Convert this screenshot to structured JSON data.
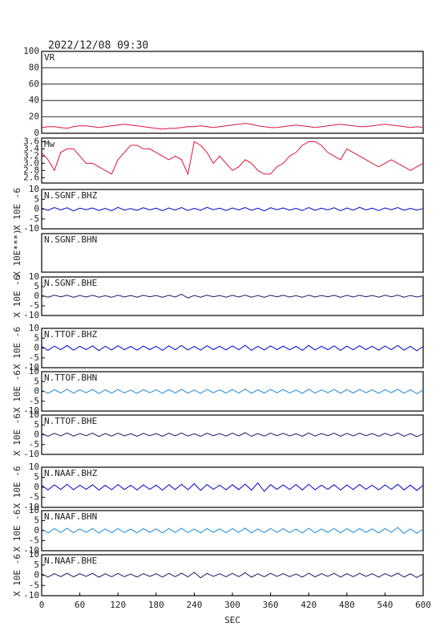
{
  "chart_data": {
    "type": "line",
    "title": "2022/12/08 09:30",
    "xlabel": "SEC",
    "xlim": [
      0,
      600
    ],
    "xticks": [
      0,
      60,
      120,
      180,
      240,
      300,
      360,
      420,
      480,
      540,
      600
    ],
    "x": [
      0,
      10,
      20,
      30,
      40,
      50,
      60,
      70,
      80,
      90,
      100,
      110,
      120,
      130,
      140,
      150,
      160,
      170,
      180,
      190,
      200,
      210,
      220,
      230,
      240,
      250,
      260,
      270,
      280,
      290,
      300,
      310,
      320,
      330,
      340,
      350,
      360,
      370,
      380,
      390,
      400,
      410,
      420,
      430,
      440,
      450,
      460,
      470,
      480,
      490,
      500,
      510,
      520,
      530,
      540,
      550,
      560,
      570,
      580,
      590,
      600
    ],
    "panels": [
      {
        "label": "VR",
        "ylim": [
          0,
          100
        ],
        "yticks": [
          0,
          20,
          40,
          60,
          80,
          100
        ],
        "grid": true,
        "color": "#dc143c",
        "values": [
          7,
          8,
          8,
          7,
          6,
          8,
          9,
          9,
          8,
          7,
          8,
          9,
          10,
          11,
          10,
          9,
          8,
          7,
          6,
          5,
          6,
          6,
          7,
          8,
          8,
          9,
          8,
          7,
          8,
          9,
          10,
          11,
          12,
          11,
          9,
          8,
          7,
          7,
          8,
          9,
          10,
          9,
          8,
          7,
          8,
          9,
          10,
          11,
          10,
          9,
          8,
          8,
          9,
          10,
          11,
          10,
          9,
          8,
          7,
          8,
          7
        ]
      },
      {
        "label": "Mw",
        "ylim": [
          2.45,
          3.7
        ],
        "yticks": [
          2.6,
          2.8,
          {
            "value": 3,
            "label": "3.0"
          },
          3.2,
          3.4,
          3.6
        ],
        "grid": false,
        "color": "#dc143c",
        "values": [
          3.3,
          3.1,
          2.8,
          3.3,
          3.4,
          3.4,
          3.2,
          3.0,
          3.0,
          2.9,
          2.8,
          2.7,
          3.1,
          3.3,
          3.5,
          3.5,
          3.4,
          3.4,
          3.3,
          3.2,
          3.1,
          3.2,
          3.1,
          2.7,
          3.6,
          3.5,
          3.3,
          3.0,
          3.2,
          3.0,
          2.8,
          2.9,
          3.1,
          3.0,
          2.8,
          2.7,
          2.7,
          2.9,
          3.0,
          3.2,
          3.3,
          3.5,
          3.6,
          3.6,
          3.5,
          3.3,
          3.2,
          3.1,
          3.4,
          3.3,
          3.2,
          3.1,
          3.0,
          2.9,
          3.0,
          3.1,
          3.0,
          2.9,
          2.8,
          2.9,
          3.0
        ]
      },
      {
        "label": "N.SGNF.BHZ",
        "ylabel": "X 10E -6",
        "ylim": [
          -10,
          10
        ],
        "yticks": [
          -10,
          -5,
          0,
          5,
          10
        ],
        "grid": false,
        "color": "#0000cd",
        "values": [
          0.5,
          -0.6,
          0.8,
          -0.4,
          0.7,
          -0.9,
          0.5,
          -0.3,
          0.6,
          -0.7,
          0.4,
          -0.8,
          0.9,
          -0.5,
          0.3,
          -0.6,
          0.7,
          -0.4,
          0.5,
          -0.8,
          0.6,
          -0.5,
          0.8,
          -0.7,
          0.4,
          -0.6,
          0.9,
          -0.3,
          0.5,
          -0.7,
          0.6,
          -0.4,
          0.8,
          -0.6,
          0.5,
          -0.9,
          0.7,
          -0.3,
          0.6,
          -0.5,
          0.4,
          -0.7,
          0.8,
          -0.6,
          0.5,
          -0.4,
          0.7,
          -0.8,
          0.6,
          -0.5,
          0.9,
          -0.4,
          0.5,
          -0.7,
          0.6,
          -0.3,
          0.8,
          -0.6,
          0.4,
          -0.5,
          0.3
        ]
      },
      {
        "label": "N.SGNF.BHN",
        "ylabel": "X 10E***)"
      },
      {
        "label": "N.SGNF.BHE",
        "ylabel": "X 10E -6",
        "ylim": [
          -10,
          10
        ],
        "yticks": [
          -10,
          -5,
          0,
          5,
          10
        ],
        "grid": false,
        "color": "#191970",
        "values": [
          0.4,
          -0.5,
          0.6,
          -0.3,
          0.5,
          -0.6,
          0.4,
          -0.4,
          0.5,
          -0.5,
          0.3,
          -0.6,
          0.6,
          -0.4,
          0.4,
          -0.5,
          0.5,
          -0.3,
          0.4,
          -0.6,
          0.5,
          -0.4,
          1.0,
          -0.9,
          0.4,
          -0.5,
          0.6,
          -0.3,
          0.4,
          -0.5,
          0.5,
          -0.4,
          0.6,
          -0.5,
          0.4,
          -0.6,
          0.5,
          -0.3,
          0.5,
          -0.4,
          0.3,
          -0.5,
          0.6,
          -0.4,
          0.4,
          -0.3,
          0.5,
          -0.6,
          0.5,
          -0.4,
          0.6,
          -0.3,
          0.4,
          -0.5,
          0.5,
          -0.3,
          0.6,
          -0.5,
          0.4,
          -0.4,
          0.3
        ]
      },
      {
        "label": "N.TTOF.BHZ",
        "ylabel": "X 10E -6",
        "ylim": [
          -10,
          10
        ],
        "yticks": [
          -10,
          -5,
          0,
          5,
          10
        ],
        "grid": false,
        "color": "#0000cd",
        "values": [
          0.8,
          -1.2,
          1.0,
          -0.9,
          1.3,
          -1.1,
          0.9,
          -0.8,
          1.1,
          -1.3,
          0.9,
          -1.0,
          1.2,
          -0.9,
          0.8,
          -1.1,
          1.0,
          -0.8,
          0.9,
          -1.2,
          1.1,
          -0.9,
          1.3,
          -1.0,
          0.8,
          -1.1,
          1.2,
          -0.8,
          0.9,
          -1.0,
          1.1,
          -0.9,
          1.4,
          -1.2,
          0.9,
          -1.0,
          1.1,
          -0.8,
          1.0,
          -0.9,
          0.8,
          -1.2,
          1.3,
          -1.0,
          0.9,
          -0.8,
          1.1,
          -1.2,
          1.0,
          -0.9,
          1.2,
          -0.8,
          0.9,
          -1.1,
          1.0,
          -0.8,
          1.3,
          -1.1,
          0.9,
          -1.4,
          0.8
        ]
      },
      {
        "label": "N.TTOF.BHN",
        "ylabel": "X 10E -6",
        "ylim": [
          -10,
          10
        ],
        "yticks": [
          -10,
          -5,
          0,
          5,
          10
        ],
        "grid": false,
        "color": "#1e88d8",
        "values": [
          0.7,
          -1.0,
          0.9,
          -0.8,
          1.1,
          -0.9,
          0.8,
          -0.7,
          1.0,
          -1.1,
          0.8,
          -0.9,
          1.0,
          -0.8,
          0.7,
          -1.0,
          0.9,
          -0.7,
          0.8,
          -1.0,
          1.0,
          -0.8,
          1.1,
          -0.9,
          0.7,
          -1.0,
          1.0,
          -0.7,
          0.8,
          -0.9,
          1.0,
          -0.8,
          1.2,
          -1.0,
          0.8,
          -0.9,
          1.0,
          -0.7,
          0.9,
          -0.8,
          0.7,
          -1.0,
          1.1,
          -0.9,
          0.8,
          -0.7,
          1.0,
          -1.0,
          0.9,
          -0.8,
          1.0,
          -0.7,
          0.8,
          -1.0,
          0.9,
          -0.7,
          1.1,
          -1.0,
          0.8,
          -1.2,
          0.7
        ]
      },
      {
        "label": "N.TTOF.BHE",
        "ylabel": "X 10E -6",
        "ylim": [
          -10,
          10
        ],
        "yticks": [
          -10,
          -5,
          0,
          5,
          10
        ],
        "grid": false,
        "color": "#191970",
        "values": [
          0.6,
          -0.8,
          0.7,
          -0.6,
          0.9,
          -0.7,
          0.6,
          -0.5,
          0.8,
          -0.9,
          0.6,
          -0.7,
          0.8,
          -0.6,
          0.5,
          -0.8,
          0.7,
          -0.5,
          0.6,
          -0.8,
          0.8,
          -0.6,
          0.9,
          -0.7,
          0.5,
          -0.8,
          0.8,
          -0.5,
          0.6,
          -0.7,
          0.8,
          -0.6,
          1.0,
          -0.8,
          0.6,
          -0.7,
          0.8,
          -0.5,
          0.7,
          -0.6,
          0.5,
          -0.8,
          0.9,
          -0.7,
          0.6,
          -0.5,
          0.8,
          -0.8,
          0.7,
          -0.6,
          0.8,
          -0.5,
          0.6,
          -0.8,
          0.7,
          -0.5,
          0.9,
          -0.8,
          0.6,
          -1.0,
          0.5
        ]
      },
      {
        "label": "N.NAAF.BHZ",
        "ylabel": "X 10E -6",
        "ylim": [
          -10,
          10
        ],
        "yticks": [
          -10,
          -5,
          0,
          5,
          10
        ],
        "grid": false,
        "color": "#0000cd",
        "values": [
          1.0,
          -1.3,
          1.2,
          -1.1,
          1.5,
          -1.2,
          1.1,
          -1.0,
          1.3,
          -1.4,
          1.0,
          -1.2,
          1.4,
          -1.1,
          1.0,
          -1.3,
          1.2,
          -1.0,
          1.1,
          -1.4,
          1.3,
          -1.1,
          1.5,
          -1.2,
          1.8,
          -1.5,
          1.4,
          -1.0,
          1.1,
          -1.2,
          1.3,
          -1.1,
          1.6,
          -1.4,
          2.2,
          -2.0,
          1.3,
          -1.0,
          1.2,
          -1.1,
          1.4,
          -1.3,
          1.5,
          -1.2,
          1.1,
          -1.0,
          1.3,
          -1.4,
          1.2,
          -1.1,
          1.4,
          -1.0,
          1.1,
          -1.3,
          1.2,
          -1.0,
          1.5,
          -1.3,
          1.1,
          -1.5,
          1.0
        ]
      },
      {
        "label": "N.NAAF.BHN",
        "ylabel": "X 10E -6",
        "ylim": [
          -10,
          10
        ],
        "yticks": [
          -10,
          -5,
          0,
          5,
          10
        ],
        "grid": false,
        "color": "#1e88d8",
        "values": [
          0.8,
          -1.1,
          1.0,
          -0.9,
          1.2,
          -1.0,
          0.9,
          -0.8,
          1.1,
          -1.2,
          0.9,
          -1.0,
          1.1,
          -0.9,
          0.8,
          -1.1,
          1.0,
          -0.8,
          0.9,
          -1.1,
          1.1,
          -0.9,
          1.2,
          -1.0,
          0.8,
          -1.1,
          1.1,
          -0.8,
          0.9,
          -1.0,
          1.1,
          -0.9,
          1.3,
          -1.1,
          0.9,
          -1.0,
          1.1,
          -0.8,
          1.0,
          -0.9,
          0.8,
          -1.1,
          1.2,
          -1.0,
          0.9,
          -0.8,
          1.1,
          -1.1,
          1.0,
          -0.9,
          1.1,
          -0.8,
          0.9,
          -1.1,
          1.0,
          -0.8,
          1.6,
          -1.4,
          0.9,
          -1.3,
          0.8
        ]
      },
      {
        "label": "N.NAAF.BHE",
        "ylabel": "X 10E -6",
        "ylim": [
          -10,
          10
        ],
        "yticks": [
          -10,
          -5,
          0,
          5,
          10
        ],
        "grid": false,
        "color": "#191970",
        "values": [
          0.7,
          -0.9,
          0.8,
          -0.7,
          1.0,
          -0.8,
          0.7,
          -0.6,
          0.9,
          -1.0,
          0.7,
          -0.8,
          0.9,
          -0.7,
          0.6,
          -0.9,
          0.8,
          -0.6,
          0.7,
          -0.9,
          0.9,
          -0.7,
          1.0,
          -0.8,
          1.4,
          -1.3,
          0.9,
          -0.6,
          0.7,
          -0.8,
          0.9,
          -0.7,
          1.2,
          -1.0,
          0.7,
          -0.8,
          0.9,
          -0.6,
          0.8,
          -0.7,
          0.6,
          -0.9,
          1.0,
          -0.8,
          0.7,
          -0.6,
          0.9,
          -0.9,
          0.8,
          -0.7,
          0.9,
          -0.6,
          0.7,
          -0.9,
          0.8,
          -0.6,
          1.0,
          -0.9,
          0.7,
          -1.1,
          0.6
        ]
      }
    ]
  }
}
